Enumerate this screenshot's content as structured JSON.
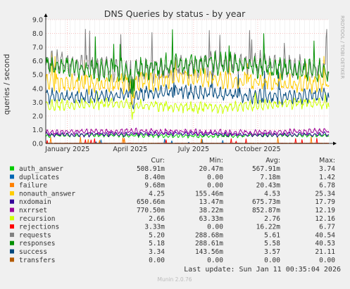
{
  "chart_data": {
    "type": "line",
    "title": "DNS Queries by status - by year",
    "ylabel": "queries / second",
    "side_label": "RRDTOOL / TOBI OETIKER",
    "ylim": [
      0,
      9
    ],
    "yticks": [
      "0.0",
      "1.0",
      "2.0",
      "3.0",
      "4.0",
      "5.0",
      "6.0",
      "7.0",
      "8.0",
      "9.0"
    ],
    "xticks": [
      "January 2025",
      "April 2025",
      "July 2025",
      "October 2025"
    ],
    "xrange": [
      "2024-12-01",
      "2026-01-11"
    ],
    "x_tick_dates": [
      "2025-01-01",
      "2025-04-01",
      "2025-07-01",
      "2025-10-01"
    ],
    "grid": true,
    "legend_headers": {
      "cur": "Cur:",
      "min": "Min:",
      "avg": "Avg:",
      "max": "Max:"
    },
    "series": [
      {
        "name": "auth_answer",
        "color": "#00cc00",
        "cur": "508.91m",
        "min": "20.47m",
        "avg": "567.91m",
        "max": "3.74"
      },
      {
        "name": "duplicates",
        "color": "#0066b3",
        "cur": "8.40m",
        "min": "0.00",
        "avg": "7.18m",
        "max": "1.42"
      },
      {
        "name": "failure",
        "color": "#ff8000",
        "cur": "9.68m",
        "min": "0.00",
        "avg": "20.43m",
        "max": "6.78"
      },
      {
        "name": "nonauth_answer",
        "color": "#ffcc00",
        "cur": "4.25",
        "min": "155.46m",
        "avg": "4.53",
        "max": "25.34"
      },
      {
        "name": "nxdomain",
        "color": "#330099",
        "cur": "650.66m",
        "min": "13.47m",
        "avg": "675.73m",
        "max": "17.79"
      },
      {
        "name": "nxrrset",
        "color": "#990099",
        "cur": "770.50m",
        "min": "38.22m",
        "avg": "852.87m",
        "max": "12.19"
      },
      {
        "name": "recursion",
        "color": "#ccff00",
        "cur": "2.66",
        "min": "63.33m",
        "avg": "2.76",
        "max": "12.16"
      },
      {
        "name": "rejections",
        "color": "#ff0000",
        "cur": "3.33m",
        "min": "0.00",
        "avg": "16.22m",
        "max": "6.77"
      },
      {
        "name": "requests",
        "color": "#808080",
        "cur": "5.20",
        "min": "288.68m",
        "avg": "5.61",
        "max": "40.54"
      },
      {
        "name": "responses",
        "color": "#008f00",
        "cur": "5.18",
        "min": "288.61m",
        "avg": "5.58",
        "max": "40.53"
      },
      {
        "name": "success",
        "color": "#00487d",
        "cur": "3.34",
        "min": "143.56m",
        "avg": "3.57",
        "max": "21.11"
      },
      {
        "name": "transfers",
        "color": "#b35a00",
        "cur": "0.00",
        "min": "0.00",
        "avg": "0.00",
        "max": "0.00"
      }
    ],
    "footer": "Last update: Sun Jan 11 00:35:04 2026",
    "generator": "Munin 2.0.76"
  }
}
